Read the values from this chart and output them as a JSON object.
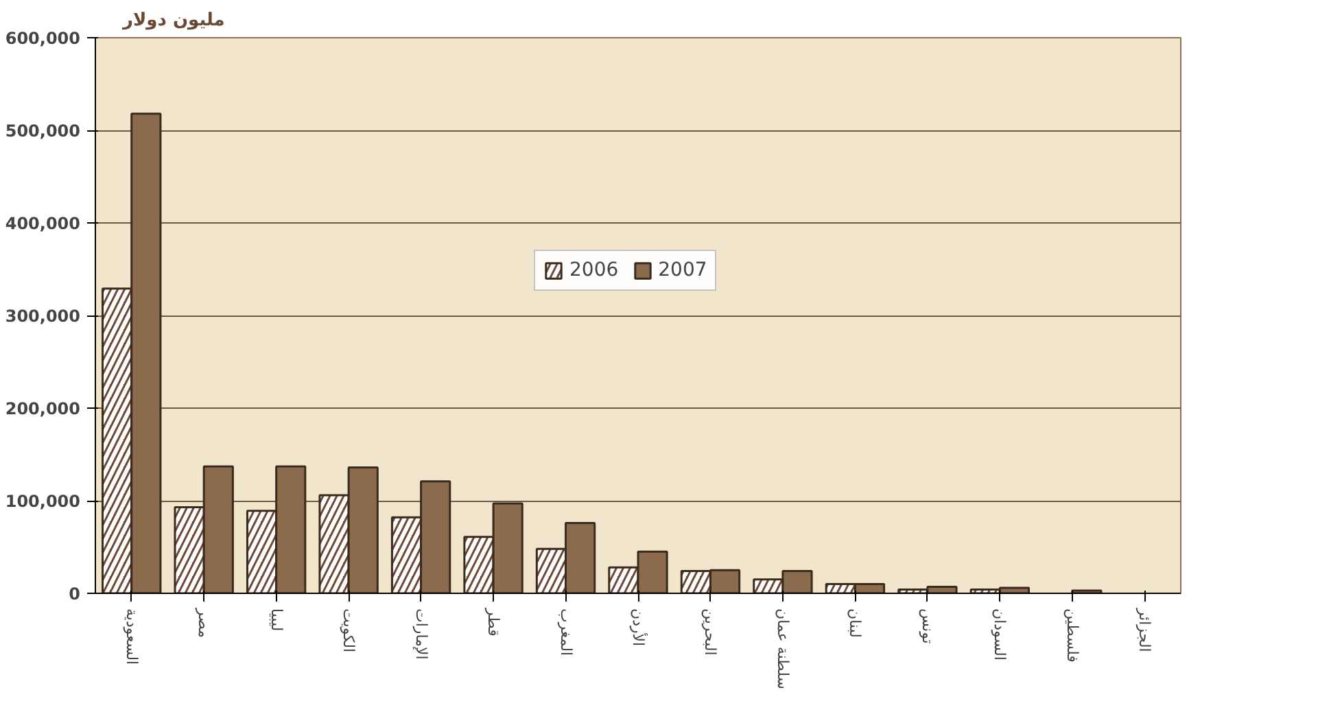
{
  "chart_data": {
    "type": "bar",
    "ylabel": "مليون دولار",
    "categories": [
      "السعودية",
      "مصر",
      "ليبيا",
      "الكويت",
      "الإمارات",
      "قطر",
      "المغرب",
      "الأردن",
      "البحرين",
      "سلطنة عمان",
      "لبنان",
      "تونس",
      "السودان",
      "فلسطين",
      "الجزائر"
    ],
    "series": [
      {
        "name": "2006",
        "color": "#6b4a35",
        "values": [
          329000,
          93000,
          89000,
          106000,
          82000,
          61000,
          48000,
          28000,
          24000,
          15000,
          10000,
          4000,
          4000,
          null,
          null
        ]
      },
      {
        "name": "2007",
        "color": "#8b6b4e",
        "values": [
          518000,
          137000,
          137000,
          136000,
          121000,
          97000,
          76000,
          45000,
          25000,
          24000,
          10000,
          7000,
          6000,
          3000,
          null
        ]
      }
    ],
    "ylim": [
      0,
      600000
    ],
    "yticks": [
      0,
      {
        "value": 100000,
        "label": "100,000"
      },
      {
        "value": 200000,
        "label": "200,000"
      },
      {
        "value": 300000,
        "label": "300,000"
      },
      {
        "value": 400000,
        "label": "400,000"
      },
      {
        "value": 500000,
        "label": "500,000"
      },
      {
        "value": 600000,
        "label": "600,000"
      }
    ],
    "grid": "y",
    "legend": "top"
  }
}
